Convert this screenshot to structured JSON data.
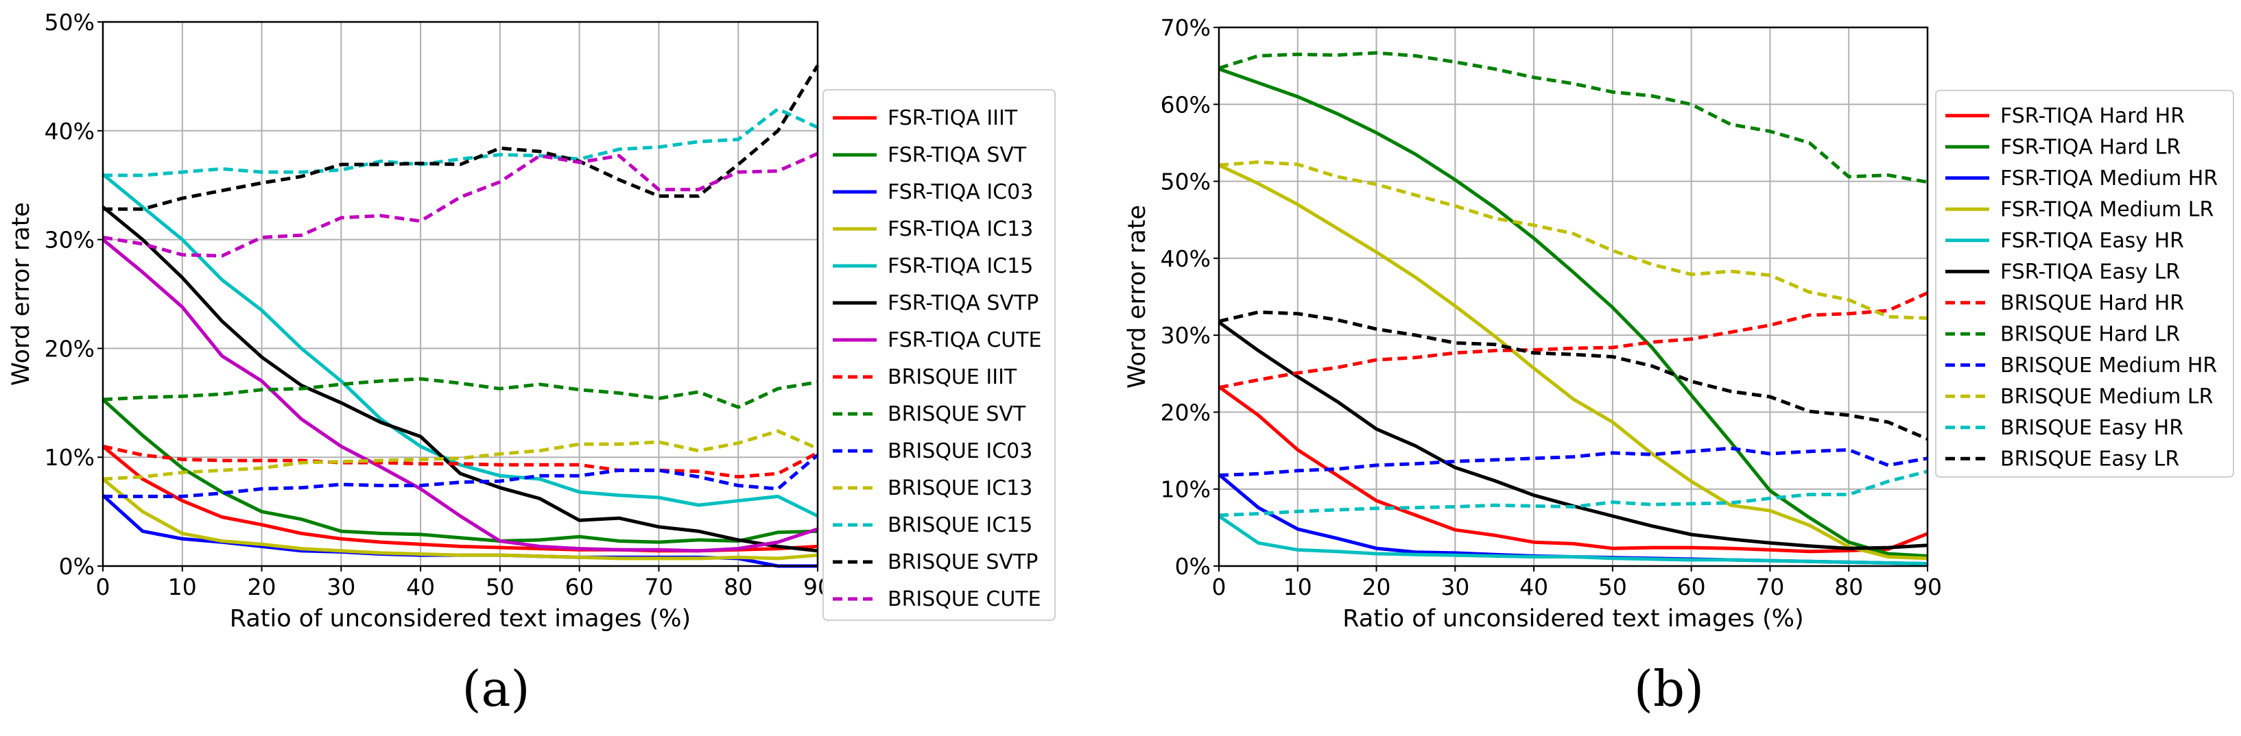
{
  "chart_data": [
    {
      "type": "line",
      "panel_label": "(a)",
      "xlabel": "Ratio of unconsidered text images (%)",
      "ylabel": "Word error rate",
      "xlim": [
        0,
        90
      ],
      "ylim": [
        0,
        50
      ],
      "x_ticks": [
        "0",
        "10",
        "20",
        "30",
        "40",
        "50",
        "60",
        "70",
        "80",
        "90"
      ],
      "y_ticks": [
        "0%",
        "10%",
        "20%",
        "30%",
        "40%",
        "50%"
      ],
      "grid": true,
      "legend_position": "right-outside",
      "x": [
        0,
        5,
        10,
        15,
        20,
        25,
        30,
        35,
        40,
        45,
        50,
        55,
        60,
        65,
        70,
        75,
        80,
        85,
        90
      ],
      "series": [
        {
          "name": "FSR-TIQA IIIT",
          "color": "#ff0000",
          "dash": "solid",
          "values": [
            11,
            8,
            6,
            4.5,
            3.8,
            3,
            2.5,
            2.2,
            2,
            1.8,
            1.7,
            1.6,
            1.5,
            1.5,
            1.4,
            1.4,
            1.5,
            1.6,
            1.8
          ]
        },
        {
          "name": "FSR-TIQA SVT",
          "color": "#008000",
          "dash": "solid",
          "values": [
            15.3,
            12,
            9,
            6.8,
            5,
            4.3,
            3.2,
            3,
            2.9,
            2.6,
            2.3,
            2.4,
            2.7,
            2.3,
            2.2,
            2.4,
            2.3,
            3.1,
            3.2
          ]
        },
        {
          "name": "FSR-TIQA IC03",
          "color": "#0000ff",
          "dash": "solid",
          "values": [
            6.5,
            3.2,
            2.5,
            2.2,
            1.8,
            1.4,
            1.3,
            1.1,
            1,
            1,
            1,
            0.9,
            0.8,
            0.8,
            0.8,
            0.8,
            0.7,
            0,
            0
          ]
        },
        {
          "name": "FSR-TIQA IC13",
          "color": "#bfbf00",
          "dash": "solid",
          "values": [
            8,
            5,
            3,
            2.3,
            2,
            1.6,
            1.4,
            1.2,
            1.1,
            1,
            1,
            0.9,
            0.8,
            0.7,
            0.7,
            0.7,
            0.8,
            0.7,
            1
          ]
        },
        {
          "name": "FSR-TIQA IC15",
          "color": "#00bfbf",
          "dash": "solid",
          "values": [
            36,
            33,
            30,
            26.3,
            23.5,
            20,
            17,
            13.5,
            11,
            9.3,
            8.3,
            8,
            6.8,
            6.5,
            6.3,
            5.6,
            6.0,
            6.4,
            4.6
          ]
        },
        {
          "name": "FSR-TIQA SVTP",
          "color": "#000000",
          "dash": "solid",
          "values": [
            33,
            30,
            26.5,
            22.5,
            19.2,
            16.6,
            15,
            13.2,
            11.9,
            8.5,
            7.2,
            6.2,
            4.2,
            4.4,
            3.6,
            3.2,
            2.4,
            1.8,
            1.4
          ]
        },
        {
          "name": "FSR-TIQA CUTE",
          "color": "#bf00bf",
          "dash": "solid",
          "values": [
            30,
            27,
            23.8,
            19.3,
            17,
            13.5,
            11,
            9.1,
            7.1,
            4.6,
            2.3,
            1.8,
            1.6,
            1.5,
            1.5,
            1.4,
            1.6,
            2.2,
            3.4
          ]
        },
        {
          "name": "BRISQUE IIIT",
          "color": "#ff0000",
          "dash": "dashed",
          "values": [
            11,
            10.2,
            9.8,
            9.7,
            9.7,
            9.7,
            9.5,
            9.5,
            9.4,
            9.4,
            9.3,
            9.3,
            9.3,
            8.8,
            8.8,
            8.7,
            8.2,
            8.5,
            10.4
          ]
        },
        {
          "name": "BRISQUE SVT",
          "color": "#008000",
          "dash": "dashed",
          "values": [
            15.3,
            15.5,
            15.6,
            15.8,
            16.2,
            16.3,
            16.7,
            17,
            17.2,
            16.8,
            16.3,
            16.7,
            16.2,
            15.9,
            15.4,
            16,
            14.6,
            16.3,
            16.9
          ]
        },
        {
          "name": "BRISQUE IC03",
          "color": "#0000ff",
          "dash": "dashed",
          "values": [
            6.4,
            6.4,
            6.4,
            6.7,
            7.1,
            7.2,
            7.5,
            7.4,
            7.4,
            7.7,
            7.8,
            8.3,
            8.3,
            8.8,
            8.8,
            8.2,
            7.4,
            7.1,
            10.2
          ]
        },
        {
          "name": "BRISQUE IC13",
          "color": "#bfbf00",
          "dash": "dashed",
          "values": [
            8,
            8.2,
            8.6,
            8.8,
            9,
            9.5,
            9.6,
            9.7,
            9.8,
            9.9,
            10.3,
            10.6,
            11.2,
            11.2,
            11.4,
            10.6,
            11.3,
            12.4,
            10.8
          ]
        },
        {
          "name": "BRISQUE IC15",
          "color": "#00bfbf",
          "dash": "dashed",
          "values": [
            35.9,
            35.9,
            36.2,
            36.5,
            36.2,
            36.2,
            36.4,
            37.2,
            36.9,
            37.4,
            37.8,
            37.7,
            37.4,
            38.3,
            38.5,
            39,
            39.2,
            42,
            40.3
          ]
        },
        {
          "name": "BRISQUE SVTP",
          "color": "#000000",
          "dash": "dashed",
          "values": [
            32.8,
            32.8,
            33.8,
            34.5,
            35.2,
            35.8,
            36.9,
            36.9,
            37,
            36.9,
            38.4,
            38.1,
            37.2,
            35.5,
            34,
            34,
            36.9,
            40,
            46
          ]
        },
        {
          "name": "BRISQUE CUTE",
          "color": "#bf00bf",
          "dash": "dashed",
          "values": [
            30.2,
            29.6,
            28.6,
            28.5,
            30.2,
            30.4,
            32,
            32.2,
            31.7,
            33.9,
            35.3,
            37.7,
            37.1,
            37.7,
            34.6,
            34.6,
            36.2,
            36.3,
            37.9
          ]
        }
      ]
    },
    {
      "type": "line",
      "panel_label": "(b)",
      "xlabel": "Ratio of unconsidered text images (%)",
      "ylabel": "Word error rate",
      "xlim": [
        0,
        90
      ],
      "ylim": [
        0,
        70
      ],
      "x_ticks": [
        "0",
        "10",
        "20",
        "30",
        "40",
        "50",
        "60",
        "70",
        "80",
        "90"
      ],
      "y_ticks": [
        "0%",
        "10%",
        "20%",
        "30%",
        "40%",
        "50%",
        "60%",
        "70%"
      ],
      "grid": true,
      "legend_position": "right-outside",
      "x": [
        0,
        5,
        10,
        15,
        20,
        25,
        30,
        35,
        40,
        45,
        50,
        55,
        60,
        65,
        70,
        75,
        80,
        85,
        90
      ],
      "series": [
        {
          "name": "FSR-TIQA Hard HR",
          "color": "#ff0000",
          "dash": "solid",
          "values": [
            23.3,
            19.6,
            15.1,
            11.8,
            8.5,
            6.6,
            4.7,
            4,
            3.1,
            2.9,
            2.3,
            2.4,
            2.4,
            2.3,
            2.1,
            1.9,
            2,
            2.2,
            4.2
          ]
        },
        {
          "name": "FSR-TIQA Hard LR",
          "color": "#008000",
          "dash": "solid",
          "values": [
            64.6,
            62.8,
            61,
            58.8,
            56.3,
            53.5,
            50.2,
            46.6,
            42.6,
            38.2,
            33.6,
            28.4,
            22.2,
            16.1,
            9.8,
            6.3,
            3.1,
            1.6,
            1.3
          ]
        },
        {
          "name": "FSR-TIQA Medium HR",
          "color": "#0000ff",
          "dash": "solid",
          "values": [
            11.9,
            7.6,
            4.8,
            3.6,
            2.3,
            1.8,
            1.7,
            1.5,
            1.3,
            1.2,
            1.1,
            1,
            0.9,
            0.8,
            0.7,
            0.6,
            0.5,
            0.4,
            0.3
          ]
        },
        {
          "name": "FSR-TIQA Medium LR",
          "color": "#bfbf00",
          "dash": "solid",
          "values": [
            52.1,
            49.7,
            47,
            43.9,
            40.8,
            37.5,
            33.8,
            29.9,
            25.7,
            21.7,
            18.7,
            14.6,
            11,
            7.9,
            7.2,
            5.3,
            2.5,
            1.2,
            1
          ]
        },
        {
          "name": "FSR-TIQA Easy HR",
          "color": "#00bfbf",
          "dash": "solid",
          "values": [
            6.5,
            3,
            2.1,
            1.9,
            1.6,
            1.5,
            1.4,
            1.3,
            1.2,
            1.2,
            1,
            0.9,
            0.8,
            0.8,
            0.7,
            0.6,
            0.5,
            0.4,
            0.3
          ]
        },
        {
          "name": "FSR-TIQA Easy LR",
          "color": "#000000",
          "dash": "solid",
          "values": [
            31.7,
            28,
            24.6,
            21.4,
            17.8,
            15.6,
            12.8,
            11.1,
            9.2,
            7.8,
            6.5,
            5.2,
            4.1,
            3.5,
            3,
            2.6,
            2.3,
            2.4,
            2.7
          ]
        },
        {
          "name": "BRISQUE Hard HR",
          "color": "#ff0000",
          "dash": "dashed",
          "values": [
            23.2,
            24.2,
            25.1,
            25.8,
            26.8,
            27.1,
            27.7,
            28,
            28.1,
            28.3,
            28.4,
            29.1,
            29.5,
            30.4,
            31.3,
            32.6,
            32.8,
            33.2,
            35.5
          ]
        },
        {
          "name": "BRISQUE Hard LR",
          "color": "#008000",
          "dash": "dashed",
          "values": [
            64.7,
            66.3,
            66.5,
            66.4,
            66.7,
            66.3,
            65.5,
            64.6,
            63.5,
            62.7,
            61.6,
            61.1,
            60,
            57.4,
            56.5,
            55,
            50.6,
            50.8,
            49.9
          ]
        },
        {
          "name": "BRISQUE Medium HR",
          "color": "#0000ff",
          "dash": "dashed",
          "values": [
            11.8,
            12,
            12.4,
            12.6,
            13.1,
            13.3,
            13.6,
            13.8,
            14,
            14.2,
            14.7,
            14.5,
            14.9,
            15.3,
            14.6,
            14.9,
            15.1,
            13.1,
            14
          ]
        },
        {
          "name": "BRISQUE Medium LR",
          "color": "#bfbf00",
          "dash": "dashed",
          "values": [
            52.1,
            52.5,
            52.2,
            50.6,
            49.6,
            48.2,
            46.8,
            45.2,
            44.3,
            43.2,
            41,
            39.2,
            37.9,
            38.3,
            37.8,
            35.6,
            34.6,
            32.4,
            32.2
          ]
        },
        {
          "name": "BRISQUE Easy HR",
          "color": "#00bfbf",
          "dash": "dashed",
          "values": [
            6.6,
            6.8,
            7.1,
            7.3,
            7.5,
            7.6,
            7.7,
            7.9,
            7.8,
            7.7,
            8.3,
            8,
            8.1,
            8.2,
            8.8,
            9.3,
            9.3,
            11,
            12.3
          ]
        },
        {
          "name": "BRISQUE Easy LR",
          "color": "#000000",
          "dash": "dashed",
          "values": [
            31.8,
            33,
            32.8,
            32,
            30.8,
            30,
            29,
            28.8,
            27.7,
            27.5,
            27.2,
            26,
            24,
            22.7,
            22,
            20.1,
            19.6,
            18.7,
            16.5
          ]
        }
      ]
    }
  ]
}
